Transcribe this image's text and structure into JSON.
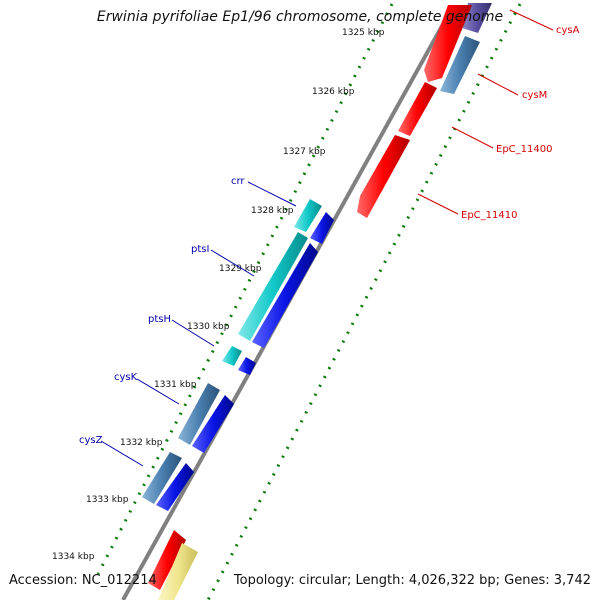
{
  "title": "Erwinia pyrifoliae Ep1/96 chromosome, complete genome",
  "accession": "Accession: NC_012214",
  "topology": "Topology: circular; Length: 4,026,322 bp; Genes: 3,742",
  "colors": {
    "backbone": "#808080",
    "tick": "#0a7a0a",
    "forward_label": "#d40000",
    "reverse_label": "#0000aa",
    "red": "#ff0000",
    "steelblue": "#4a7fb0",
    "cyan": "#11c8c8",
    "blue": "#0a14e6",
    "slate": "#5a4fa0",
    "khaki": "#f0e68c"
  },
  "ruler": {
    "labels": [
      "1325 kbp",
      "1326 kbp",
      "1327 kbp",
      "1328 kbp",
      "1329 kbp",
      "1330 kbp",
      "1331 kbp",
      "1332 kbp",
      "1333 kbp",
      "1334 kbp"
    ]
  },
  "genes": [
    {
      "label": "cysA",
      "track": "forward",
      "color": "slate"
    },
    {
      "label": "cysM",
      "track": "forward",
      "color": "steelblue"
    },
    {
      "label": "EpC_11400",
      "track": "forward",
      "color": "red"
    },
    {
      "label": "EpC_11410",
      "track": "forward",
      "color": "red"
    },
    {
      "label": "crr",
      "track": "reverse",
      "color": "cyan"
    },
    {
      "label": "ptsI",
      "track": "reverse",
      "color": "cyan"
    },
    {
      "label": "ptsH",
      "track": "reverse",
      "color": "cyan"
    },
    {
      "label": "cysK",
      "track": "reverse",
      "color": "steelblue"
    },
    {
      "label": "cysZ",
      "track": "reverse",
      "color": "steelblue"
    }
  ]
}
